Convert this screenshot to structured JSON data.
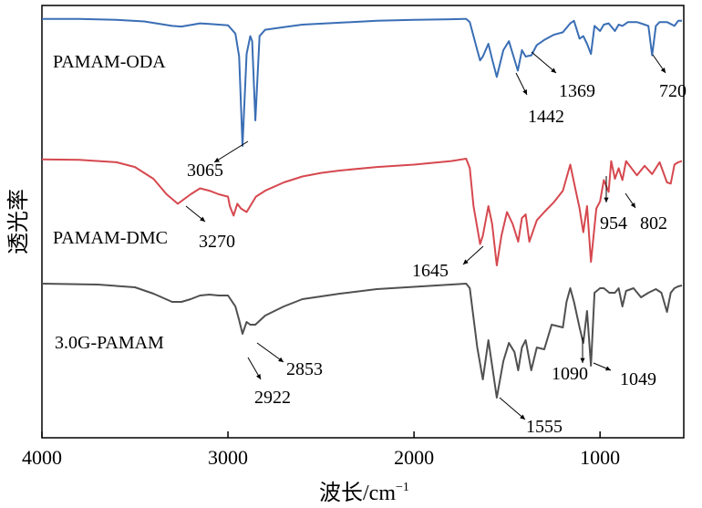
{
  "chart_data": {
    "type": "line",
    "xlabel": "波长/cm",
    "xlabel_sup": "−1",
    "ylabel": "透光率",
    "xlim": [
      4000,
      550
    ],
    "x_reversed": true,
    "x_ticks": [
      4000,
      3000,
      2000,
      1000
    ],
    "y_ticks": [],
    "grid": false,
    "series": [
      {
        "name": "PAMAM-ODA",
        "color": "#3a6eb5",
        "points": [
          [
            4000,
            0.5
          ],
          [
            3800,
            0.6
          ],
          [
            3600,
            1.2
          ],
          [
            3450,
            2.5
          ],
          [
            3300,
            6
          ],
          [
            3250,
            6.5
          ],
          [
            3150,
            4
          ],
          [
            3100,
            4.5
          ],
          [
            3000,
            5.5
          ],
          [
            2960,
            12
          ],
          [
            2940,
            30
          ],
          [
            2922,
            100
          ],
          [
            2900,
            28
          ],
          [
            2880,
            14
          ],
          [
            2870,
            18
          ],
          [
            2853,
            80
          ],
          [
            2830,
            14
          ],
          [
            2800,
            9
          ],
          [
            2700,
            7
          ],
          [
            2600,
            5
          ],
          [
            2400,
            3.5
          ],
          [
            2200,
            2
          ],
          [
            2000,
            1.2
          ],
          [
            1800,
            0.8
          ],
          [
            1720,
            0.5
          ],
          [
            1700,
            3
          ],
          [
            1660,
            25
          ],
          [
            1645,
            33
          ],
          [
            1630,
            30
          ],
          [
            1600,
            20
          ],
          [
            1580,
            32
          ],
          [
            1555,
            46
          ],
          [
            1520,
            25
          ],
          [
            1490,
            18
          ],
          [
            1465,
            30
          ],
          [
            1442,
            41
          ],
          [
            1420,
            25
          ],
          [
            1400,
            30
          ],
          [
            1369,
            29
          ],
          [
            1340,
            21
          ],
          [
            1300,
            17
          ],
          [
            1250,
            13
          ],
          [
            1200,
            11
          ],
          [
            1160,
            4
          ],
          [
            1140,
            2
          ],
          [
            1110,
            16
          ],
          [
            1090,
            14
          ],
          [
            1070,
            20
          ],
          [
            1049,
            28
          ],
          [
            1030,
            6
          ],
          [
            1000,
            10
          ],
          [
            980,
            5
          ],
          [
            954,
            4
          ],
          [
            920,
            10
          ],
          [
            900,
            5
          ],
          [
            880,
            6
          ],
          [
            850,
            3
          ],
          [
            802,
            3
          ],
          [
            760,
            5
          ],
          [
            740,
            6
          ],
          [
            720,
            29
          ],
          [
            700,
            6
          ],
          [
            680,
            3
          ],
          [
            640,
            3
          ],
          [
            600,
            6
          ],
          [
            580,
            2
          ],
          [
            560,
            2
          ]
        ]
      },
      {
        "name": "PAMAM-DMC",
        "color": "#d6484f",
        "points": [
          [
            4000,
            0.5
          ],
          [
            3800,
            1
          ],
          [
            3600,
            3
          ],
          [
            3500,
            7
          ],
          [
            3400,
            17
          ],
          [
            3330,
            30
          ],
          [
            3270,
            38
          ],
          [
            3200,
            30
          ],
          [
            3150,
            25
          ],
          [
            3100,
            27
          ],
          [
            3050,
            30
          ],
          [
            3000,
            32
          ],
          [
            2990,
            40
          ],
          [
            2970,
            48
          ],
          [
            2950,
            38
          ],
          [
            2930,
            42
          ],
          [
            2900,
            45
          ],
          [
            2850,
            32
          ],
          [
            2800,
            27
          ],
          [
            2700,
            20
          ],
          [
            2600,
            15
          ],
          [
            2500,
            12
          ],
          [
            2400,
            10
          ],
          [
            2200,
            7
          ],
          [
            2000,
            5
          ],
          [
            1800,
            2
          ],
          [
            1720,
            0
          ],
          [
            1700,
            8
          ],
          [
            1680,
            40
          ],
          [
            1645,
            72
          ],
          [
            1630,
            65
          ],
          [
            1600,
            40
          ],
          [
            1580,
            55
          ],
          [
            1555,
            90
          ],
          [
            1530,
            65
          ],
          [
            1500,
            45
          ],
          [
            1470,
            55
          ],
          [
            1440,
            70
          ],
          [
            1420,
            50
          ],
          [
            1400,
            47
          ],
          [
            1380,
            70
          ],
          [
            1340,
            52
          ],
          [
            1300,
            45
          ],
          [
            1250,
            37
          ],
          [
            1200,
            27
          ],
          [
            1160,
            5
          ],
          [
            1140,
            20
          ],
          [
            1110,
            42
          ],
          [
            1090,
            62
          ],
          [
            1070,
            40
          ],
          [
            1049,
            87
          ],
          [
            1020,
            42
          ],
          [
            1000,
            36
          ],
          [
            980,
            18
          ],
          [
            954,
            28
          ],
          [
            940,
            2
          ],
          [
            920,
            17
          ],
          [
            900,
            8
          ],
          [
            880,
            18
          ],
          [
            860,
            2
          ],
          [
            802,
            14
          ],
          [
            760,
            6
          ],
          [
            720,
            13
          ],
          [
            680,
            3
          ],
          [
            640,
            20
          ],
          [
            620,
            21
          ],
          [
            600,
            5
          ],
          [
            580,
            3
          ],
          [
            560,
            2
          ]
        ]
      },
      {
        "name": "3.0G-PAMAM",
        "color": "#505050",
        "points": [
          [
            4000,
            0
          ],
          [
            3700,
            1
          ],
          [
            3500,
            4
          ],
          [
            3400,
            11
          ],
          [
            3300,
            20
          ],
          [
            3250,
            20
          ],
          [
            3200,
            17
          ],
          [
            3150,
            13
          ],
          [
            3100,
            12
          ],
          [
            3050,
            13
          ],
          [
            3000,
            13
          ],
          [
            2960,
            25
          ],
          [
            2940,
            40
          ],
          [
            2922,
            55
          ],
          [
            2900,
            42
          ],
          [
            2880,
            45
          ],
          [
            2853,
            45
          ],
          [
            2800,
            35
          ],
          [
            2700,
            25
          ],
          [
            2600,
            17
          ],
          [
            2400,
            11
          ],
          [
            2200,
            6
          ],
          [
            2000,
            3.5
          ],
          [
            1800,
            1
          ],
          [
            1720,
            0
          ],
          [
            1700,
            5
          ],
          [
            1660,
            70
          ],
          [
            1630,
            105
          ],
          [
            1600,
            62
          ],
          [
            1580,
            90
          ],
          [
            1555,
            125
          ],
          [
            1520,
            85
          ],
          [
            1490,
            65
          ],
          [
            1460,
            75
          ],
          [
            1440,
            95
          ],
          [
            1420,
            70
          ],
          [
            1400,
            62
          ],
          [
            1370,
            95
          ],
          [
            1340,
            70
          ],
          [
            1300,
            72
          ],
          [
            1260,
            45
          ],
          [
            1200,
            48
          ],
          [
            1180,
            20
          ],
          [
            1160,
            5
          ],
          [
            1140,
            20
          ],
          [
            1110,
            48
          ],
          [
            1090,
            65
          ],
          [
            1070,
            30
          ],
          [
            1049,
            90
          ],
          [
            1030,
            10
          ],
          [
            1000,
            5
          ],
          [
            980,
            5
          ],
          [
            950,
            10
          ],
          [
            920,
            10
          ],
          [
            900,
            5
          ],
          [
            880,
            25
          ],
          [
            860,
            8
          ],
          [
            820,
            5
          ],
          [
            780,
            15
          ],
          [
            740,
            10
          ],
          [
            700,
            6
          ],
          [
            670,
            10
          ],
          [
            640,
            31
          ],
          [
            620,
            10
          ],
          [
            600,
            5
          ],
          [
            580,
            3
          ],
          [
            560,
            2
          ]
        ]
      }
    ],
    "annotations": [
      {
        "label": "3065"
      },
      {
        "label": "1369"
      },
      {
        "label": "1442"
      },
      {
        "label": "720"
      },
      {
        "label": "3270"
      },
      {
        "label": "1645"
      },
      {
        "label": "954"
      },
      {
        "label": "802"
      },
      {
        "label": "2853"
      },
      {
        "label": "2922"
      },
      {
        "label": "1090"
      },
      {
        "label": "1049"
      },
      {
        "label": "1555"
      }
    ]
  }
}
